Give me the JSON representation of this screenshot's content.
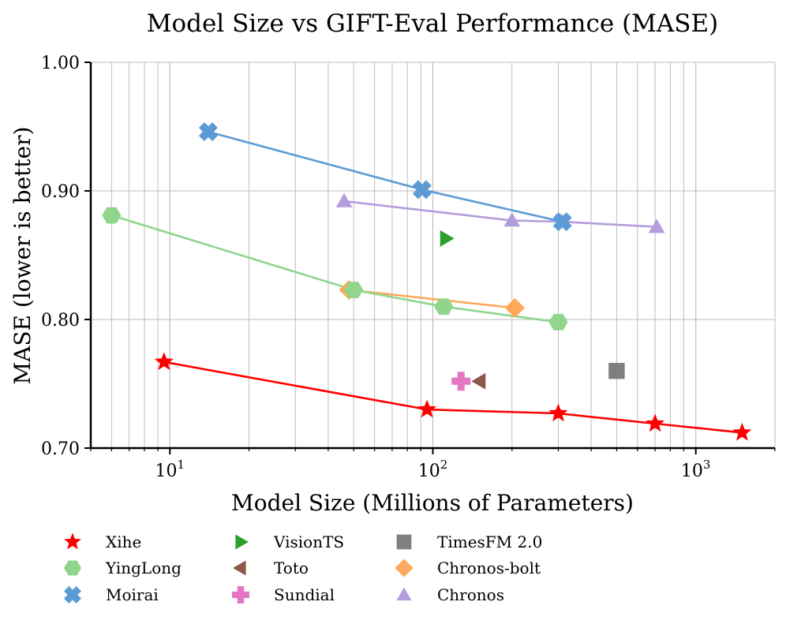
{
  "chart_data": {
    "type": "scatter",
    "title": "Model Size vs GIFT-Eval Performance (MASE)",
    "xlabel": "Model Size (Millions of Parameters)",
    "ylabel": "MASE (lower is better)",
    "xscale": "log",
    "xlim": [
      5,
      2000
    ],
    "ylim": [
      0.7,
      1.0
    ],
    "grid": true,
    "legend_position": "bottom",
    "x_ticks": [
      {
        "value": 10,
        "base": "10",
        "exp": "1"
      },
      {
        "value": 100,
        "base": "10",
        "exp": "2"
      },
      {
        "value": 1000,
        "base": "10",
        "exp": "3"
      }
    ],
    "y_ticks": [
      {
        "value": 0.7,
        "label": "0.70"
      },
      {
        "value": 0.8,
        "label": "0.80"
      },
      {
        "value": 0.9,
        "label": "0.90"
      },
      {
        "value": 1.0,
        "label": "1.00"
      }
    ],
    "series": [
      {
        "name": "Xihe",
        "color": "#ff0000",
        "marker": "star",
        "line": true,
        "points": [
          [
            9.5,
            0.767
          ],
          [
            95,
            0.73
          ],
          [
            300,
            0.727
          ],
          [
            700,
            0.719
          ],
          [
            1500,
            0.712
          ]
        ]
      },
      {
        "name": "VisionTS",
        "color": "#2ca02c",
        "marker": "triangle-right",
        "line": false,
        "points": [
          [
            112,
            0.863
          ]
        ]
      },
      {
        "name": "Sundial",
        "color": "#e377c2",
        "marker": "plus",
        "line": false,
        "points": [
          [
            128,
            0.752
          ]
        ]
      },
      {
        "name": "Chronos-bolt",
        "color": "#ffa85b",
        "marker": "diamond",
        "line": true,
        "points": [
          [
            48,
            0.823
          ],
          [
            205,
            0.809
          ]
        ]
      },
      {
        "name": "YingLong",
        "color": "#8fd68c",
        "marker": "hexagon",
        "line": true,
        "points": [
          [
            6,
            0.881
          ],
          [
            50,
            0.823
          ],
          [
            110,
            0.81
          ],
          [
            300,
            0.798
          ]
        ]
      },
      {
        "name": "Toto",
        "color": "#8c564b",
        "marker": "triangle-left",
        "line": false,
        "points": [
          [
            151,
            0.752
          ]
        ]
      },
      {
        "name": "TimesFM 2.0",
        "color": "#7f7f7f",
        "marker": "square",
        "line": false,
        "points": [
          [
            500,
            0.76
          ]
        ]
      },
      {
        "name": "Chronos",
        "color": "#b39ddb",
        "marker": "triangle-up",
        "line": true,
        "points": [
          [
            46,
            0.892
          ],
          [
            200,
            0.877
          ],
          [
            310,
            0.876
          ],
          [
            710,
            0.872
          ]
        ]
      },
      {
        "name": "Moirai",
        "color": "#5b9bd5",
        "marker": "x",
        "line": true,
        "points": [
          [
            14,
            0.946
          ],
          [
            91,
            0.901
          ],
          [
            311,
            0.876
          ]
        ]
      }
    ],
    "legend": [
      {
        "name": "Xihe",
        "color": "#ff0000",
        "marker": "star"
      },
      {
        "name": "YingLong",
        "color": "#8fd68c",
        "marker": "hexagon"
      },
      {
        "name": "Moirai",
        "color": "#5b9bd5",
        "marker": "x"
      },
      {
        "name": "VisionTS",
        "color": "#2ca02c",
        "marker": "triangle-right"
      },
      {
        "name": "Toto",
        "color": "#8c564b",
        "marker": "triangle-left"
      },
      {
        "name": "Sundial",
        "color": "#e377c2",
        "marker": "plus"
      },
      {
        "name": "TimesFM 2.0",
        "color": "#7f7f7f",
        "marker": "square"
      },
      {
        "name": "Chronos-bolt",
        "color": "#ffa85b",
        "marker": "diamond"
      },
      {
        "name": "Chronos",
        "color": "#b39ddb",
        "marker": "triangle-up"
      }
    ]
  }
}
